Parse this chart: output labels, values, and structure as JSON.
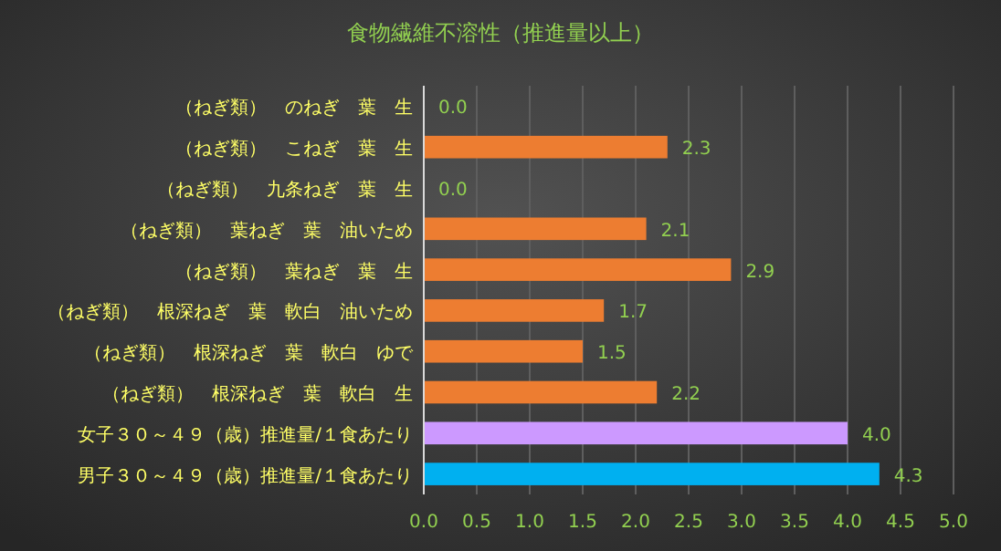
{
  "chart_data": {
    "type": "bar",
    "orientation": "horizontal",
    "title": "食物繊維不溶性（推進量以上）",
    "categories": [
      "（ねぎ類）　のねぎ　葉　生",
      "（ねぎ類）　こねぎ　葉　生",
      "（ねぎ類）　九条ねぎ　葉　生",
      "（ねぎ類）　葉ねぎ　葉　油いため",
      "（ねぎ類）　葉ねぎ　葉　生",
      "（ねぎ類）　根深ねぎ　葉　軟白　油いため",
      "（ねぎ類）　根深ねぎ　葉　軟白　ゆで",
      "（ねぎ類）　根深ねぎ　葉　軟白　生",
      "女子３０～４９（歳）推進量/１食あたり",
      "男子３０～４９（歳）推進量/１食あたり"
    ],
    "values": [
      0.0,
      2.3,
      0.0,
      2.1,
      2.9,
      1.7,
      1.5,
      2.2,
      4.0,
      4.3
    ],
    "colors": [
      "#ed7d31",
      "#ed7d31",
      "#ed7d31",
      "#ed7d31",
      "#ed7d31",
      "#ed7d31",
      "#ed7d31",
      "#ed7d31",
      "#cc99ff",
      "#00b0f0"
    ],
    "value_labels": [
      "0.0",
      "2.3",
      "0.0",
      "2.1",
      "2.9",
      "1.7",
      "1.5",
      "2.2",
      "4.0",
      "4.3"
    ],
    "xlim": [
      0,
      5
    ],
    "xticks": [
      "0.0",
      "0.5",
      "1.0",
      "1.5",
      "2.0",
      "2.5",
      "3.0",
      "3.5",
      "4.0",
      "4.5",
      "5.0"
    ],
    "grid": "x"
  }
}
